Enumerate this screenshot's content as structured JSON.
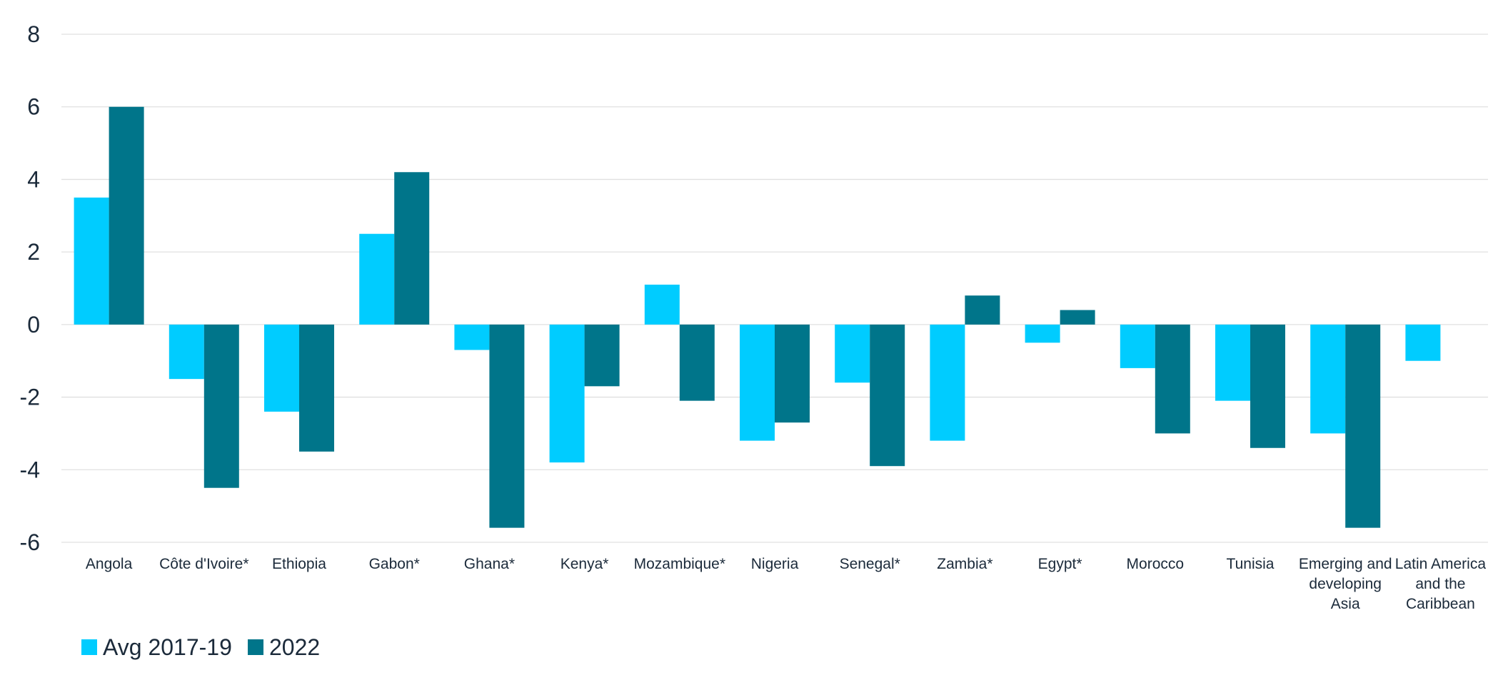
{
  "chart_data": {
    "type": "bar",
    "categories": [
      [
        "Angola"
      ],
      [
        "Côte d'Ivoire*"
      ],
      [
        "Ethiopia"
      ],
      [
        "Gabon*"
      ],
      [
        "Ghana*"
      ],
      [
        "Kenya*"
      ],
      [
        "Mozambique*"
      ],
      [
        "Nigeria"
      ],
      [
        "Senegal*"
      ],
      [
        "Zambia*"
      ],
      [
        "Egypt*"
      ],
      [
        "Morocco"
      ],
      [
        "Tunisia"
      ],
      [
        "Emerging and",
        "developing",
        "Asia"
      ],
      [
        "Latin America",
        "and the",
        "Caribbean"
      ]
    ],
    "series": [
      {
        "name": "Avg 2017-19",
        "color": "#00ccff",
        "values": [
          3.5,
          -1.5,
          -2.4,
          2.5,
          -0.7,
          -3.8,
          1.1,
          -3.2,
          -1.6,
          -3.2,
          -0.5,
          -1.2,
          -2.1,
          -3.0,
          -1.0
        ]
      },
      {
        "name": "2022",
        "color": "#00758a",
        "values": [
          6.0,
          -4.5,
          -3.5,
          4.2,
          -5.6,
          -1.7,
          -2.1,
          -2.7,
          -3.9,
          0.8,
          0.4,
          -3.0,
          -3.4,
          -5.6,
          null
        ]
      }
    ],
    "yticks": [
      "8",
      "6",
      "4",
      "2",
      "0",
      "-2",
      "-4",
      "-6"
    ],
    "ylim": [
      -6,
      8
    ],
    "grid": true,
    "legend_position": "bottom-left"
  }
}
